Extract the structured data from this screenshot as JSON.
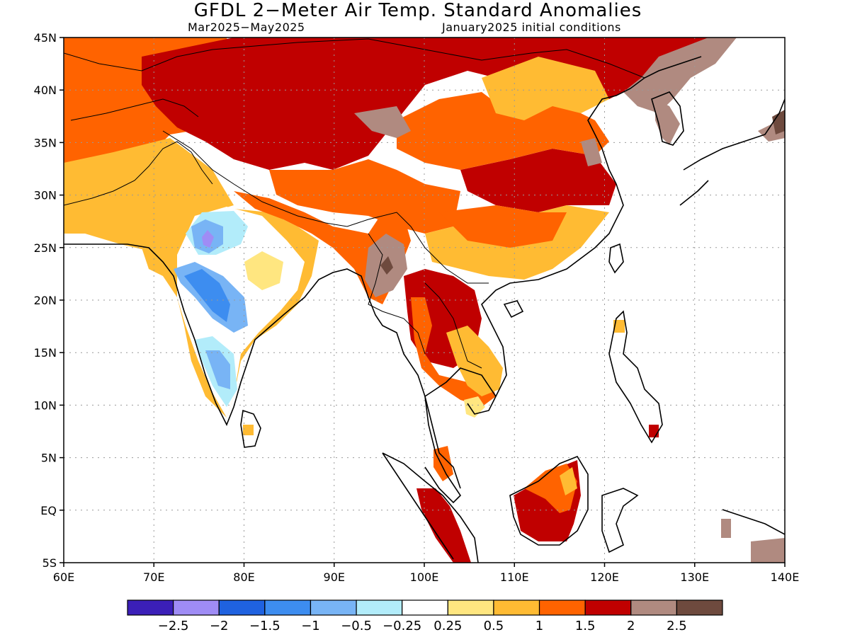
{
  "title": "GFDL 2−Meter Air Temp. Standard Anomalies",
  "period": "Mar2025−May2025",
  "initial_conditions": "January2025 initial conditions",
  "axes": {
    "lat_labels": [
      "45N",
      "40N",
      "35N",
      "30N",
      "25N",
      "20N",
      "15N",
      "10N",
      "5N",
      "EQ",
      "5S"
    ],
    "lon_labels": [
      "60E",
      "70E",
      "80E",
      "90E",
      "100E",
      "110E",
      "120E",
      "130E",
      "140E"
    ]
  },
  "colorbar": {
    "colors": [
      "#3b1fb8",
      "#9f8cf5",
      "#1f62e0",
      "#3d8df0",
      "#78b4f5",
      "#b2ecfa",
      "#ffffff",
      "#ffe680",
      "#ffbb33",
      "#ff6300",
      "#c00000",
      "#b08a80",
      "#6e4a3e"
    ],
    "labels": [
      "−2.5",
      "−2",
      "−1.5",
      "−1",
      "−0.5",
      "−0.25",
      "0.25",
      "0.5",
      "1",
      "1.5",
      "2",
      "2.5"
    ]
  }
}
